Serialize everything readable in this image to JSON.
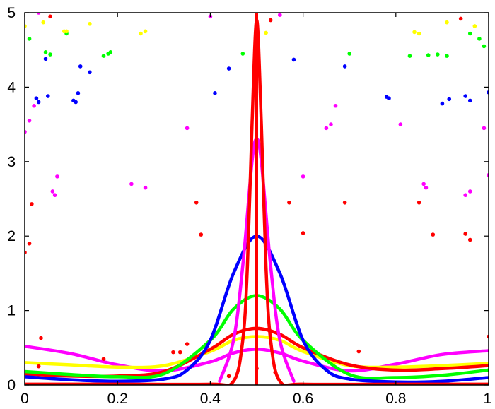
{
  "chart_data": {
    "type": "line",
    "title": "",
    "xlabel": "",
    "ylabel": "",
    "xlim": [
      0,
      1
    ],
    "ylim": [
      0,
      5
    ],
    "grid": false,
    "legend": "none",
    "x_ticks": [
      "0",
      "0.2",
      "0.4",
      "0.6",
      "0.8",
      "1"
    ],
    "x_tick_values": [
      0,
      0.2,
      0.4,
      0.6,
      0.8,
      1
    ],
    "y_ticks": [
      "0",
      "1",
      "2",
      "3",
      "4",
      "5"
    ],
    "y_tick_values": [
      0,
      1,
      2,
      3,
      4,
      5
    ],
    "series": [
      {
        "color": "#ff00ff",
        "x": [
          0,
          0.1,
          0.2,
          0.3,
          0.4,
          0.45,
          0.5,
          0.55,
          0.6,
          0.7,
          0.8,
          0.9,
          1
        ],
        "y": [
          0.52,
          0.42,
          0.27,
          0.19,
          0.31,
          0.43,
          0.48,
          0.43,
          0.32,
          0.19,
          0.28,
          0.41,
          0.46
        ]
      },
      {
        "color": "#ffff00",
        "x": [
          0,
          0.1,
          0.2,
          0.3,
          0.4,
          0.45,
          0.5,
          0.55,
          0.6,
          0.7,
          0.8,
          0.9,
          1
        ],
        "y": [
          0.3,
          0.27,
          0.24,
          0.26,
          0.45,
          0.6,
          0.65,
          0.6,
          0.45,
          0.26,
          0.24,
          0.26,
          0.29
        ]
      },
      {
        "color": "#ff0000",
        "x": [
          0,
          0.1,
          0.2,
          0.3,
          0.4,
          0.45,
          0.5,
          0.55,
          0.6,
          0.7,
          0.8,
          0.9,
          1
        ],
        "y": [
          0.15,
          0.12,
          0.12,
          0.18,
          0.48,
          0.68,
          0.76,
          0.68,
          0.5,
          0.27,
          0.2,
          0.22,
          0.26
        ]
      },
      {
        "color": "#00ff00",
        "x": [
          0,
          0.1,
          0.2,
          0.3,
          0.4,
          0.45,
          0.5,
          0.55,
          0.6,
          0.7,
          0.8,
          0.9,
          1
        ],
        "y": [
          0.18,
          0.14,
          0.11,
          0.15,
          0.6,
          1.02,
          1.2,
          1.02,
          0.6,
          0.14,
          0.1,
          0.13,
          0.2
        ]
      },
      {
        "color": "#0000ff",
        "x": [
          0,
          0.1,
          0.2,
          0.3,
          0.35,
          0.4,
          0.45,
          0.5,
          0.55,
          0.6,
          0.65,
          0.7,
          0.8,
          0.9,
          1
        ],
        "y": [
          0.11,
          0.07,
          0.05,
          0.08,
          0.2,
          0.6,
          1.5,
          2.0,
          1.5,
          0.6,
          0.2,
          0.08,
          0.04,
          0.05,
          0.1
        ]
      },
      {
        "color": "#ff00ff",
        "x": [
          0.42,
          0.45,
          0.47,
          0.49,
          0.5,
          0.51,
          0.53,
          0.55,
          0.58
        ],
        "y": [
          0.05,
          0.6,
          1.6,
          3.0,
          3.3,
          3.0,
          1.6,
          0.6,
          0.05
        ]
      },
      {
        "color": "#ff0000",
        "x": [
          0,
          0.2,
          0.4,
          0.45,
          0.47,
          0.48,
          0.49,
          0.5,
          0.51,
          0.52,
          0.53,
          0.55,
          0.6,
          0.8,
          1
        ],
        "y": [
          0.01,
          0.01,
          0.01,
          0.05,
          0.6,
          1.6,
          3.5,
          4.9,
          3.5,
          1.6,
          0.6,
          0.05,
          0.01,
          0.01,
          0.01
        ]
      }
    ],
    "vertical_line": {
      "x": 0.5,
      "color": "#ff0000",
      "y_range": [
        0,
        5
      ]
    },
    "scatter": [
      {
        "color": "#ff0000",
        "x": [
          0,
          0.01,
          0.015,
          0.03,
          0.035,
          0.055,
          0.17,
          0.32,
          0.335,
          0.35,
          0.37,
          0.38,
          0.44,
          0.5,
          0.53,
          0.54,
          0.57,
          0.6,
          0.69,
          0.72,
          0.85,
          0.88,
          0.94,
          0.95,
          0.96,
          1
        ],
        "y": [
          1.78,
          1.9,
          2.43,
          0.25,
          0.63,
          4.95,
          0.35,
          0.44,
          0.44,
          0.55,
          2.45,
          2.02,
          0.12,
          0.22,
          4.9,
          0.17,
          2.45,
          2.04,
          2.45,
          0.45,
          2.45,
          2.02,
          4.92,
          2.03,
          1.95,
          0.65
        ]
      },
      {
        "color": "#ff00ff",
        "x": [
          0,
          0.01,
          0.02,
          0.03,
          0.06,
          0.065,
          0.07,
          0.23,
          0.26,
          0.35,
          0.4,
          0.55,
          0.6,
          0.65,
          0.66,
          0.67,
          0.81,
          0.86,
          0.865,
          0.95,
          0.96,
          0.99,
          1
        ],
        "y": [
          3.4,
          3.55,
          3.75,
          5.0,
          2.6,
          2.55,
          2.8,
          2.7,
          2.65,
          3.45,
          4.95,
          4.97,
          2.8,
          3.45,
          3.5,
          3.75,
          3.5,
          2.7,
          2.65,
          2.55,
          2.6,
          3.45,
          2.82
        ]
      },
      {
        "color": "#0000ff",
        "x": [
          0.025,
          0.03,
          0.045,
          0.05,
          0.105,
          0.11,
          0.115,
          0.12,
          0.14,
          0.41,
          0.44,
          0.58,
          0.69,
          0.78,
          0.785,
          0.9,
          0.915,
          0.95,
          0.96,
          1
        ],
        "y": [
          3.85,
          3.8,
          4.38,
          3.88,
          3.82,
          3.8,
          3.92,
          4.28,
          4.2,
          3.92,
          4.25,
          4.37,
          4.28,
          3.87,
          3.85,
          3.78,
          3.84,
          3.88,
          3.82,
          3.93
        ]
      },
      {
        "color": "#00ff00",
        "x": [
          0.01,
          0.045,
          0.055,
          0.09,
          0.17,
          0.18,
          0.185,
          0.47,
          0.7,
          0.83,
          0.87,
          0.89,
          0.91,
          0.96,
          0.98,
          0.99
        ],
        "y": [
          4.65,
          4.47,
          4.44,
          4.72,
          4.42,
          4.45,
          4.47,
          4.45,
          4.45,
          4.42,
          4.43,
          4.44,
          4.42,
          4.72,
          4.65,
          4.55
        ]
      },
      {
        "color": "#ffff00",
        "x": [
          0,
          0.04,
          0.085,
          0.09,
          0.14,
          0.25,
          0.26,
          0.52,
          0.84,
          0.85,
          0.91,
          0.97
        ],
        "y": [
          4.82,
          4.87,
          4.75,
          4.75,
          4.85,
          4.72,
          4.75,
          4.73,
          4.74,
          4.72,
          4.87,
          4.82
        ]
      }
    ]
  }
}
